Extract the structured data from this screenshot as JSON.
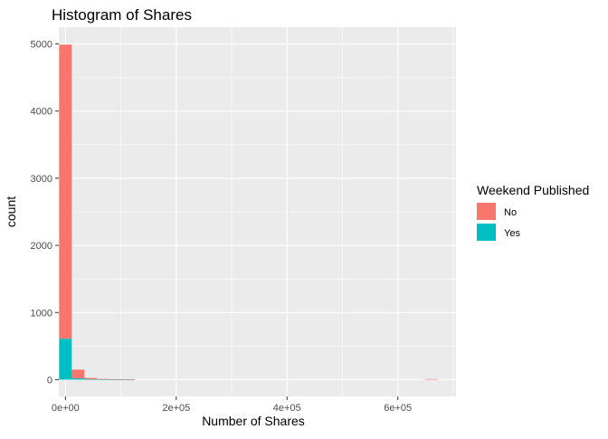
{
  "chart_data": {
    "type": "bar",
    "stacked": true,
    "histogram": true,
    "title": "Histogram of Shares",
    "xlabel": "Number of Shares",
    "ylabel": "count",
    "xlim": [
      -12000,
      705000
    ],
    "ylim": [
      -250,
      5250
    ],
    "x_ticks": [
      0,
      200000,
      400000,
      600000
    ],
    "x_tick_labels": [
      "0e+00",
      "2e+05",
      "4e+05",
      "6e+05"
    ],
    "y_ticks": [
      0,
      1000,
      2000,
      3000,
      4000,
      5000
    ],
    "y_tick_labels": [
      "0",
      "1000",
      "2000",
      "3000",
      "4000",
      "5000"
    ],
    "bin_width": 22800,
    "bin_starts": [
      -11400,
      11400,
      34200,
      57000,
      79800,
      102600,
      649800
    ],
    "series": [
      {
        "name": "Yes",
        "color": "#00BFC4",
        "values": [
          610,
          20,
          5,
          3,
          2,
          1,
          0
        ]
      },
      {
        "name": "No",
        "color": "#F8766D",
        "values": [
          4380,
          130,
          20,
          8,
          5,
          3,
          8
        ]
      }
    ],
    "legend": {
      "title": "Weekend Published",
      "position": "right",
      "items": [
        {
          "label": "No",
          "color": "#F8766D"
        },
        {
          "label": "Yes",
          "color": "#00BFC4"
        }
      ]
    },
    "grid": true,
    "panel_background": "#EBEBEB",
    "grid_color": "#FFFFFF"
  }
}
